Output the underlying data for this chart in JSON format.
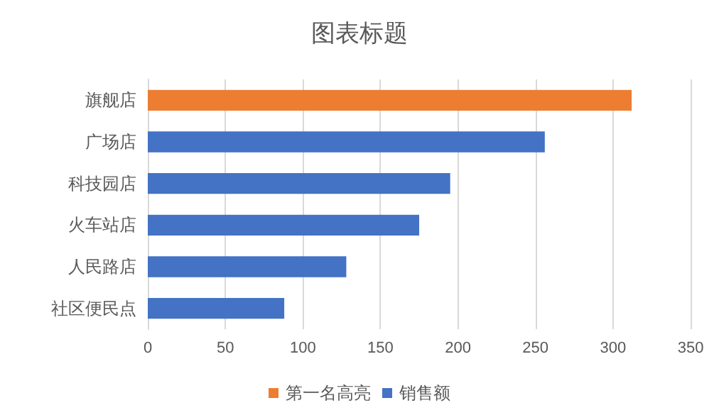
{
  "chart_data": {
    "type": "bar",
    "title": "图表标题",
    "orientation": "horizontal",
    "stacked": true,
    "categories": [
      "旗舰店",
      "广场店",
      "科技园店",
      "火车站店",
      "人民路店",
      "社区便民点"
    ],
    "series": [
      {
        "name": "第一名高亮",
        "color": "#ed7d31",
        "values": [
          312,
          null,
          null,
          null,
          null,
          null
        ]
      },
      {
        "name": "销售额",
        "color": "#4472c4",
        "values": [
          null,
          256,
          195,
          175,
          128,
          88
        ]
      }
    ],
    "xlim": [
      0,
      350
    ],
    "xticks": [
      0,
      50,
      100,
      150,
      200,
      250,
      300,
      350
    ],
    "grid": "x",
    "legend": "bottom"
  }
}
